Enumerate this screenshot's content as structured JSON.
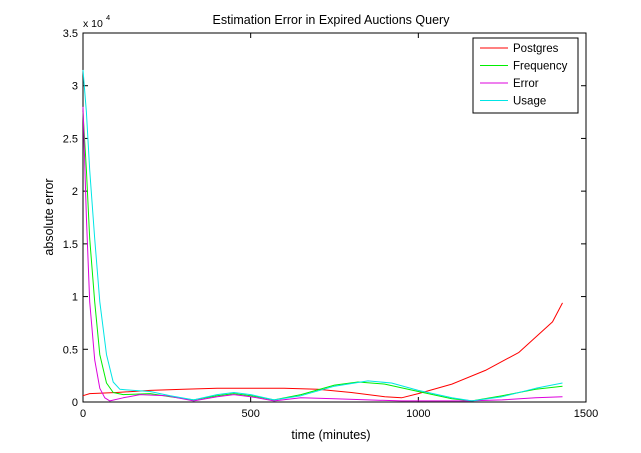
{
  "chart_data": {
    "type": "line",
    "title": "Estimation Error in Expired Auctions Query",
    "xlabel": "time (minutes)",
    "ylabel": "absolute error",
    "y_scale_factor_label": "x 10",
    "y_scale_exponent": "4",
    "xlim": [
      0,
      1500
    ],
    "ylim": [
      0,
      3.5
    ],
    "x_ticks": [
      0,
      500,
      1000,
      1500
    ],
    "x_tick_labels": [
      "0",
      "500",
      "1000",
      "1500"
    ],
    "y_ticks": [
      0,
      0.5,
      1,
      1.5,
      2,
      2.5,
      3,
      3.5
    ],
    "y_tick_labels": [
      "0",
      "0.5",
      "1",
      "1.5",
      "2",
      "2.5",
      "3",
      "3.5"
    ],
    "grid": false,
    "legend_position": "top-right",
    "series": [
      {
        "name": "Postgres",
        "color": "#ff0000",
        "points": [
          [
            0,
            0.06
          ],
          [
            20,
            0.08
          ],
          [
            100,
            0.09
          ],
          [
            200,
            0.11
          ],
          [
            300,
            0.12
          ],
          [
            400,
            0.13
          ],
          [
            500,
            0.13
          ],
          [
            600,
            0.13
          ],
          [
            700,
            0.12
          ],
          [
            800,
            0.09
          ],
          [
            900,
            0.05
          ],
          [
            950,
            0.04
          ],
          [
            1000,
            0.08
          ],
          [
            1100,
            0.17
          ],
          [
            1200,
            0.3
          ],
          [
            1300,
            0.47
          ],
          [
            1400,
            0.76
          ],
          [
            1430,
            0.94
          ]
        ]
      },
      {
        "name": "Frequency",
        "color": "#00ee00",
        "points": [
          [
            0,
            2.75
          ],
          [
            10,
            2.2
          ],
          [
            20,
            1.55
          ],
          [
            35,
            0.95
          ],
          [
            50,
            0.45
          ],
          [
            70,
            0.18
          ],
          [
            90,
            0.09
          ],
          [
            120,
            0.07
          ],
          [
            200,
            0.08
          ],
          [
            260,
            0.05
          ],
          [
            330,
            0.02
          ],
          [
            400,
            0.06
          ],
          [
            450,
            0.08
          ],
          [
            500,
            0.06
          ],
          [
            570,
            0.02
          ],
          [
            650,
            0.07
          ],
          [
            750,
            0.16
          ],
          [
            820,
            0.19
          ],
          [
            900,
            0.17
          ],
          [
            1000,
            0.1
          ],
          [
            1100,
            0.03
          ],
          [
            1160,
            0.01
          ],
          [
            1250,
            0.06
          ],
          [
            1350,
            0.12
          ],
          [
            1430,
            0.15
          ]
        ]
      },
      {
        "name": "Error",
        "color": "#dd00dd",
        "points": [
          [
            0,
            2.8
          ],
          [
            10,
            1.75
          ],
          [
            20,
            0.95
          ],
          [
            35,
            0.4
          ],
          [
            50,
            0.13
          ],
          [
            65,
            0.04
          ],
          [
            80,
            0.01
          ],
          [
            120,
            0.04
          ],
          [
            170,
            0.07
          ],
          [
            250,
            0.06
          ],
          [
            330,
            0.01
          ],
          [
            400,
            0.05
          ],
          [
            450,
            0.07
          ],
          [
            500,
            0.05
          ],
          [
            570,
            0.01
          ],
          [
            650,
            0.04
          ],
          [
            750,
            0.03
          ],
          [
            850,
            0.02
          ],
          [
            950,
            0.01
          ],
          [
            1050,
            0.01
          ],
          [
            1150,
            0.01
          ],
          [
            1250,
            0.02
          ],
          [
            1350,
            0.04
          ],
          [
            1430,
            0.05
          ]
        ]
      },
      {
        "name": "Usage",
        "color": "#00e5e5",
        "points": [
          [
            0,
            3.15
          ],
          [
            10,
            2.75
          ],
          [
            20,
            2.2
          ],
          [
            35,
            1.55
          ],
          [
            50,
            0.95
          ],
          [
            70,
            0.45
          ],
          [
            90,
            0.19
          ],
          [
            110,
            0.12
          ],
          [
            150,
            0.11
          ],
          [
            200,
            0.1
          ],
          [
            260,
            0.06
          ],
          [
            330,
            0.02
          ],
          [
            400,
            0.07
          ],
          [
            450,
            0.09
          ],
          [
            500,
            0.07
          ],
          [
            570,
            0.02
          ],
          [
            650,
            0.06
          ],
          [
            750,
            0.15
          ],
          [
            850,
            0.2
          ],
          [
            920,
            0.18
          ],
          [
            1000,
            0.11
          ],
          [
            1100,
            0.04
          ],
          [
            1160,
            0.01
          ],
          [
            1250,
            0.05
          ],
          [
            1350,
            0.13
          ],
          [
            1430,
            0.18
          ]
        ]
      }
    ]
  }
}
